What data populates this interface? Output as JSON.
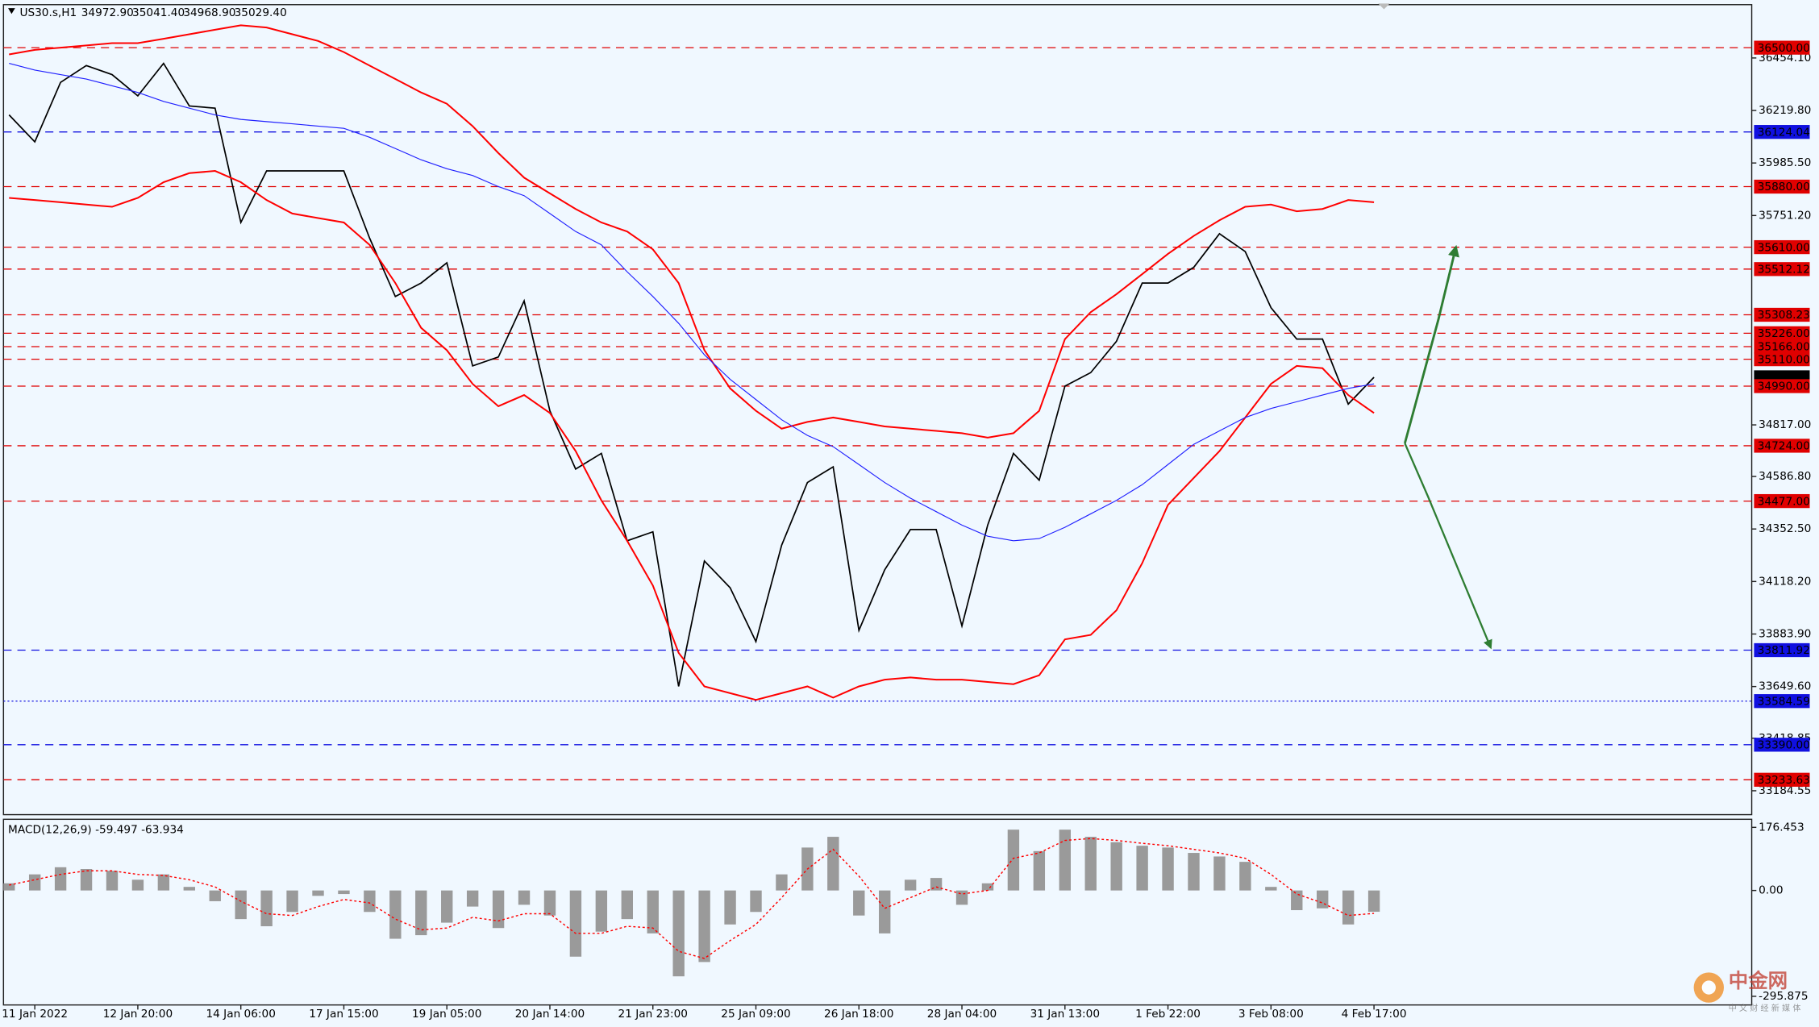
{
  "chart_data": [
    {
      "type": "line",
      "title": "US30.s,H1",
      "header_values": [
        "34972.90",
        "35041.40",
        "34968.90",
        "35029.40"
      ],
      "categories": [
        null,
        "11 Jan 2022",
        null,
        null,
        null,
        "12 Jan 20:00",
        null,
        null,
        null,
        "14 Jan 06:00",
        null,
        null,
        null,
        "17 Jan 15:00",
        null,
        null,
        null,
        "19 Jan 05:00",
        null,
        null,
        null,
        "20 Jan 14:00",
        null,
        null,
        null,
        "21 Jan 23:00",
        null,
        null,
        null,
        "25 Jan 09:00",
        null,
        null,
        null,
        "26 Jan 18:00",
        null,
        null,
        null,
        "28 Jan 04:00",
        null,
        null,
        null,
        "31 Jan 13:00",
        null,
        null,
        null,
        "1 Feb 22:00",
        null,
        null,
        null,
        "3 Feb 08:00",
        null,
        null,
        null,
        "4 Feb 17:00"
      ],
      "series": [
        {
          "name": "Close",
          "color": "#000000",
          "width": 1.2,
          "values": [
            36200,
            36080,
            36345,
            36420,
            36380,
            36285,
            36430,
            36240,
            36230,
            35720,
            35950,
            35950,
            35950,
            35950,
            35650,
            35390,
            35450,
            35540,
            35080,
            35120,
            35370,
            34880,
            34620,
            34690,
            34300,
            34340,
            33650,
            34210,
            34090,
            33850,
            34280,
            34560,
            34630,
            33900,
            34170,
            34350,
            34350,
            33920,
            34370,
            34690,
            34570,
            34990,
            35050,
            35190,
            35450,
            35450,
            35520,
            35670,
            35590,
            35340,
            35200,
            35200,
            34910,
            35029.4
          ]
        },
        {
          "name": "Upper band",
          "color": "#ff0000",
          "width": 1.4,
          "values": [
            36470,
            36490,
            36500,
            36510,
            36520,
            36520,
            36540,
            36560,
            36580,
            36600,
            36590,
            36560,
            36530,
            36480,
            36420,
            36360,
            36300,
            36250,
            36150,
            36030,
            35920,
            35850,
            35780,
            35720,
            35680,
            35600,
            35450,
            35150,
            34980,
            34880,
            34800,
            34830,
            34850,
            34830,
            34810,
            34800,
            34790,
            34780,
            34760,
            34780,
            34880,
            35200,
            35320,
            35400,
            35490,
            35580,
            35660,
            35730,
            35790,
            35800,
            35770,
            35780,
            35820,
            35810
          ]
        },
        {
          "name": "Lower band",
          "color": "#ff0000",
          "width": 1.4,
          "values": [
            35830,
            35820,
            35810,
            35800,
            35790,
            35830,
            35900,
            35940,
            35950,
            35900,
            35820,
            35760,
            35740,
            35720,
            35620,
            35450,
            35250,
            35150,
            35000,
            34900,
            34950,
            34870,
            34700,
            34480,
            34300,
            34100,
            33800,
            33650,
            33620,
            33590,
            33620,
            33650,
            33600,
            33650,
            33680,
            33690,
            33680,
            33680,
            33670,
            33660,
            33700,
            33860,
            33880,
            33990,
            34200,
            34460,
            34580,
            34700,
            34850,
            35000,
            35080,
            35070,
            34950,
            34870
          ]
        },
        {
          "name": "Moving average",
          "color": "#2020ff",
          "width": 0.8,
          "values": [
            36430,
            36400,
            36380,
            36360,
            36330,
            36300,
            36260,
            36230,
            36200,
            36180,
            36170,
            36160,
            36150,
            36140,
            36100,
            36050,
            36000,
            35960,
            35930,
            35880,
            35840,
            35760,
            35680,
            35620,
            35500,
            35390,
            35270,
            35130,
            35020,
            34930,
            34840,
            34770,
            34720,
            34640,
            34560,
            34490,
            34430,
            34370,
            34320,
            34300,
            34310,
            34360,
            34420,
            34480,
            34550,
            34640,
            34730,
            34790,
            34850,
            34890,
            34920,
            34950,
            34980,
            35000
          ]
        }
      ],
      "ylim": [
        33078,
        36692
      ],
      "yticks": [
        {
          "value": 36454.1,
          "label": "36454.10"
        },
        {
          "value": 36219.8,
          "label": "36219.80"
        },
        {
          "value": 35985.5,
          "label": "35985.50"
        },
        {
          "value": 35751.2,
          "label": "35751.20"
        },
        {
          "value": 34817,
          "label": "34817.00"
        },
        {
          "value": 34586.8,
          "label": "34586.80"
        },
        {
          "value": 34352.5,
          "label": "34352.50"
        },
        {
          "value": 34118.2,
          "label": "34118.20"
        },
        {
          "value": 33883.9,
          "label": "33883.90"
        },
        {
          "value": 33649.6,
          "label": "33649.60"
        },
        {
          "value": 33418.85,
          "label": "33418.85"
        },
        {
          "value": 33184.55,
          "label": "33184.55"
        }
      ],
      "grid": false,
      "levels": [
        {
          "value": 36500,
          "label": "36500.00",
          "color": "#e00000",
          "style": "dash"
        },
        {
          "value": 36124.04,
          "label": "36124.04",
          "color": "#1010e0",
          "style": "dash"
        },
        {
          "value": 35880,
          "label": "35880.00",
          "color": "#e00000",
          "style": "dash"
        },
        {
          "value": 35610,
          "label": "35610.00",
          "color": "#e00000",
          "style": "dash"
        },
        {
          "value": 35512.12,
          "label": "35512.12",
          "color": "#e00000",
          "style": "dash"
        },
        {
          "value": 35308.23,
          "label": "35308.23",
          "color": "#e00000",
          "style": "dash"
        },
        {
          "value": 35226,
          "label": "35226.00",
          "color": "#e00000",
          "style": "dash"
        },
        {
          "value": 35166,
          "label": "35166.00",
          "color": "#e00000",
          "style": "dash"
        },
        {
          "value": 35110,
          "label": "35110.00",
          "color": "#e00000",
          "style": "dash"
        },
        {
          "value": 35029.4,
          "label": "35029.40",
          "color": "#000000",
          "style": "none"
        },
        {
          "value": 34990,
          "label": "34990.00",
          "color": "#e00000",
          "style": "dash"
        },
        {
          "value": 34724,
          "label": "34724.00",
          "color": "#e00000",
          "style": "dash"
        },
        {
          "value": 34477,
          "label": "34477.00",
          "color": "#e00000",
          "style": "dash"
        },
        {
          "value": 33811.92,
          "label": "33811.92",
          "color": "#1010e0",
          "style": "dash"
        },
        {
          "value": 33584.59,
          "label": "33584.59",
          "color": "#1010e0",
          "style": "dot"
        },
        {
          "value": 33390,
          "label": "33390.00",
          "color": "#1010e0",
          "style": "dash"
        },
        {
          "value": 33233.63,
          "label": "33233.63",
          "color": "#e00000",
          "style": "dash"
        }
      ]
    },
    {
      "type": "bar",
      "title": "MACD(12,26,9) -59.497 -63.934",
      "series": [
        {
          "name": "MACD",
          "color": "#9a9a9a",
          "values": [
            20,
            45,
            65,
            60,
            55,
            30,
            45,
            10,
            -30,
            -80,
            -100,
            -60,
            -15,
            -10,
            -60,
            -135,
            -125,
            -90,
            -45,
            -105,
            -40,
            -70,
            -185,
            -115,
            -80,
            -120,
            -240,
            -200,
            -95,
            -60,
            45,
            120,
            150,
            -70,
            -120,
            30,
            35,
            -40,
            20,
            170,
            110,
            170,
            150,
            135,
            125,
            120,
            105,
            95,
            80,
            10,
            -55,
            -50,
            -95,
            -59.497
          ]
        },
        {
          "name": "Signal",
          "color": "#ff0000",
          "type": "line",
          "values": [
            15,
            30,
            45,
            55,
            55,
            45,
            42,
            30,
            10,
            -30,
            -65,
            -70,
            -45,
            -25,
            -35,
            -80,
            -110,
            -105,
            -75,
            -85,
            -65,
            -65,
            -120,
            -120,
            -100,
            -105,
            -170,
            -190,
            -140,
            -95,
            -20,
            60,
            115,
            40,
            -50,
            -20,
            10,
            -10,
            0,
            90,
            105,
            140,
            145,
            140,
            132,
            125,
            115,
            105,
            90,
            45,
            -10,
            -35,
            -70,
            -63.934
          ]
        }
      ],
      "ylim": [
        -320,
        199
      ],
      "yticks": [
        176.453,
        {
          "value": 0,
          "label": "0.00"
        },
        -295.875
      ]
    },
    {
      "type": "watermark",
      "brand": "中金网",
      "slogan": "中 文 财 经 新 媒 体"
    }
  ]
}
